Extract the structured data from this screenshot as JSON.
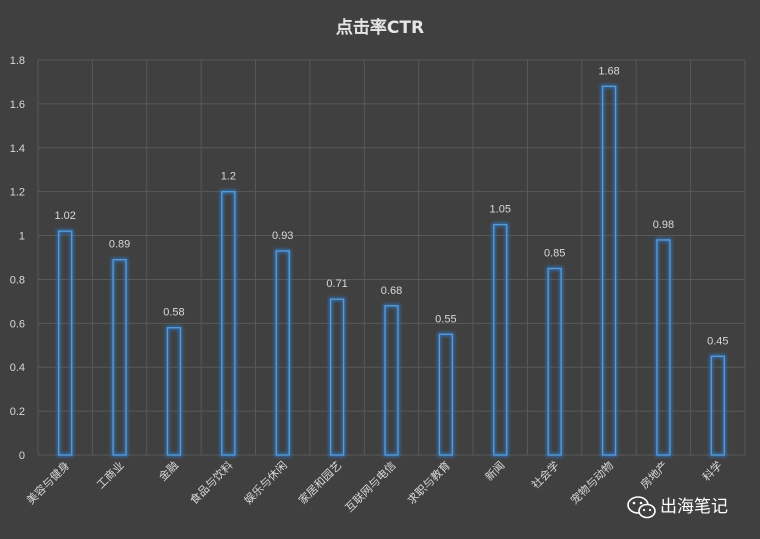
{
  "chart_data": {
    "type": "bar",
    "title": "点击率CTR",
    "categories": [
      "美容与健身",
      "工商业",
      "金融",
      "食品与饮料",
      "娱乐与休闲",
      "家居和园艺",
      "互联网与电信",
      "求职与教育",
      "新闻",
      "社会学",
      "宠物与动物",
      "房地产",
      "科学"
    ],
    "values": [
      1.02,
      0.89,
      0.58,
      1.2,
      0.93,
      0.71,
      0.68,
      0.55,
      1.05,
      0.85,
      1.68,
      0.98,
      0.45
    ],
    "data_labels": [
      "1.02",
      "0.89",
      "0.58",
      "1.2",
      "0.93",
      "0.71",
      "0.68",
      "0.55",
      "1.05",
      "0.85",
      "1.68",
      "0.98",
      "0.45"
    ],
    "yticks": [
      "0",
      "0.2",
      "0.4",
      "0.6",
      "0.8",
      "1",
      "1.2",
      "1.4",
      "1.6",
      "1.8"
    ],
    "ylim": [
      0,
      1.8
    ],
    "xlabel": "",
    "ylabel": "",
    "grid": true,
    "legend": "none"
  },
  "watermark": {
    "text": "出海笔记",
    "icon": "wechat-icon"
  },
  "colors": {
    "background": "#404040",
    "bar_stroke": "#5b9bd5",
    "bar_glow": "#2f6fb3",
    "grid": "#595959",
    "text": "#d9d9d9"
  }
}
